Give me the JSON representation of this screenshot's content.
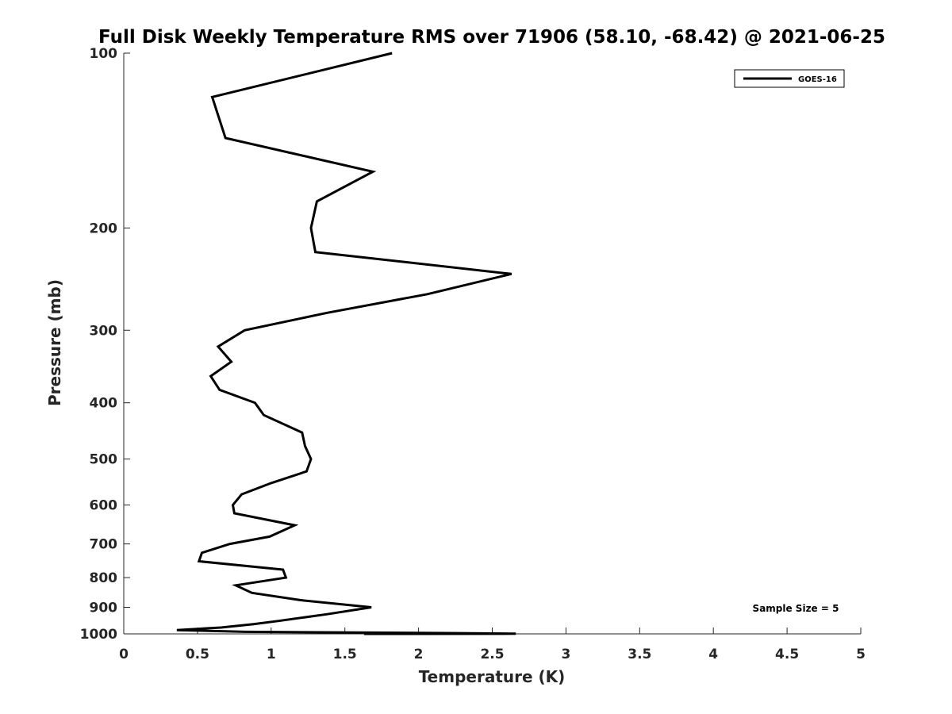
{
  "chart_data": {
    "type": "line",
    "title": "Full Disk Weekly Temperature RMS over 71906 (58.10, -68.42) @ 2021-06-25",
    "xlabel": "Temperature (K)",
    "ylabel": "Pressure (mb)",
    "xlim": [
      0,
      5
    ],
    "ylim": [
      100,
      1000
    ],
    "yscale": "log",
    "y_reversed": true,
    "grid": false,
    "legend_position": "top-right",
    "x_ticks": [
      "0",
      "0.5",
      "1",
      "1.5",
      "2",
      "2.5",
      "3",
      "3.5",
      "4",
      "4.5",
      "5"
    ],
    "y_ticks": [
      "100",
      "200",
      "300",
      "400",
      "500",
      "600",
      "700",
      "800",
      "900",
      "1000"
    ],
    "series": [
      {
        "name": "GOES-16",
        "color": "#000000",
        "x": [
          1.82,
          0.6,
          0.69,
          1.69,
          1.31,
          1.27,
          1.3,
          2.63,
          2.06,
          1.38,
          0.82,
          0.64,
          0.73,
          0.59,
          0.65,
          0.89,
          0.95,
          1.21,
          1.23,
          1.27,
          1.24,
          1.0,
          0.8,
          0.74,
          0.75,
          1.16,
          0.99,
          0.72,
          0.53,
          0.51,
          1.08,
          1.1,
          0.76,
          0.87,
          1.2,
          1.68,
          1.38,
          1.05,
          0.88,
          0.66,
          0.36,
          0.82,
          2.2,
          2.66,
          1.63
        ],
        "y": [
          100,
          119,
          140,
          160,
          180,
          200,
          220,
          240,
          260,
          280,
          300,
          320,
          340,
          360,
          380,
          400,
          420,
          450,
          475,
          500,
          525,
          550,
          575,
          600,
          620,
          650,
          680,
          700,
          725,
          750,
          775,
          800,
          825,
          850,
          875,
          900,
          925,
          950,
          962,
          975,
          985,
          992,
          997,
          999.5,
          1000
        ]
      }
    ],
    "annotations": [
      "Sample Size = 5"
    ]
  }
}
